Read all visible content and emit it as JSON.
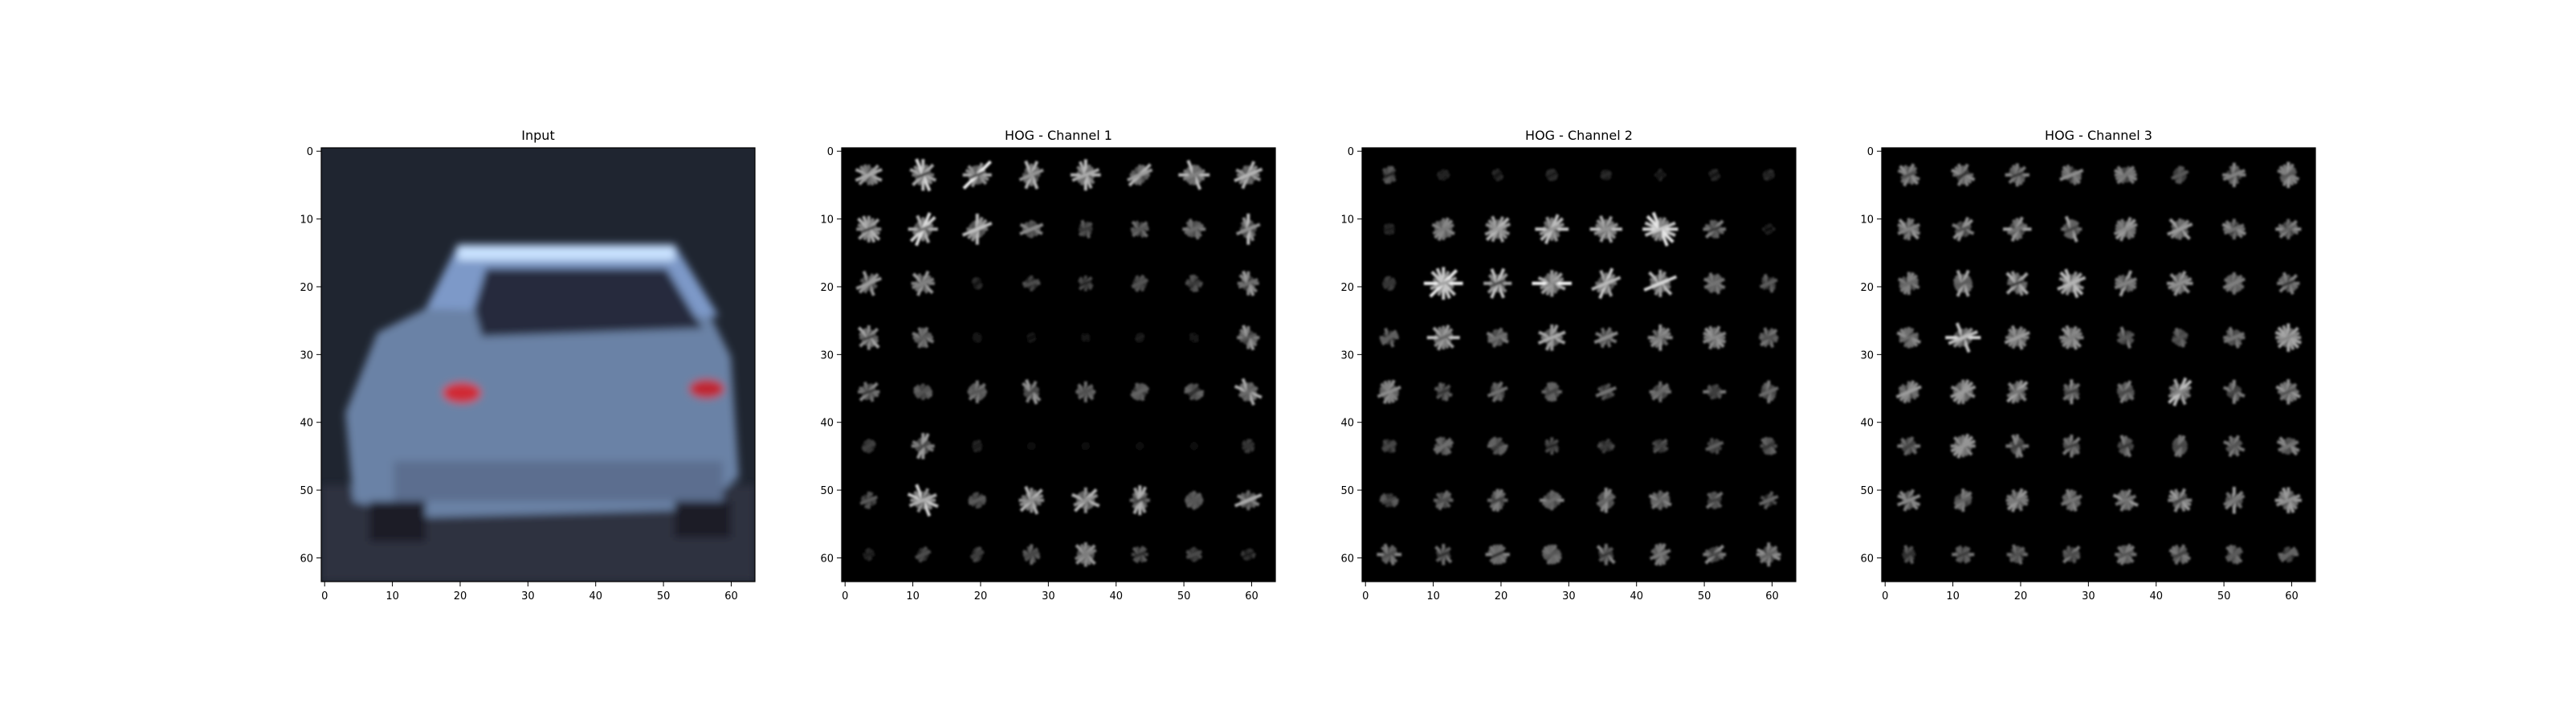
{
  "chart_data": [
    {
      "type": "heatmap",
      "title": "Input",
      "image": "rgb-car-rear",
      "xlim": [
        -0.5,
        63.5
      ],
      "ylim": [
        63.5,
        -0.5
      ],
      "xticks": [
        0,
        10,
        20,
        30,
        40,
        50,
        60
      ],
      "yticks": [
        0,
        10,
        20,
        30,
        40,
        50,
        60
      ]
    },
    {
      "type": "heatmap",
      "title": "HOG - Channel 1",
      "colormap": "gray",
      "grid_cells": [
        8,
        8
      ],
      "xlim": [
        -0.5,
        63.5
      ],
      "ylim": [
        63.5,
        -0.5
      ],
      "xticks": [
        0,
        10,
        20,
        30,
        40,
        50,
        60
      ],
      "yticks": [
        0,
        10,
        20,
        30,
        40,
        50,
        60
      ],
      "cell_intensity": [
        [
          0.6,
          0.7,
          0.8,
          0.6,
          0.6,
          0.6,
          0.6,
          0.6
        ],
        [
          0.6,
          0.7,
          0.6,
          0.45,
          0.35,
          0.35,
          0.45,
          0.6
        ],
        [
          0.5,
          0.5,
          0.15,
          0.3,
          0.3,
          0.3,
          0.3,
          0.55
        ],
        [
          0.6,
          0.4,
          0.1,
          0.1,
          0.1,
          0.1,
          0.1,
          0.5
        ],
        [
          0.45,
          0.4,
          0.6,
          0.5,
          0.35,
          0.35,
          0.35,
          0.6
        ],
        [
          0.2,
          0.6,
          0.15,
          0.05,
          0.05,
          0.05,
          0.05,
          0.2
        ],
        [
          0.3,
          0.7,
          0.3,
          0.6,
          0.65,
          0.6,
          0.3,
          0.55
        ],
        [
          0.15,
          0.25,
          0.25,
          0.35,
          0.5,
          0.3,
          0.25,
          0.2
        ]
      ]
    },
    {
      "type": "heatmap",
      "title": "HOG - Channel 2",
      "colormap": "gray",
      "grid_cells": [
        8,
        8
      ],
      "xlim": [
        -0.5,
        63.5
      ],
      "ylim": [
        63.5,
        -0.5
      ],
      "xticks": [
        0,
        10,
        20,
        30,
        40,
        50,
        60
      ],
      "yticks": [
        0,
        10,
        20,
        30,
        40,
        50,
        60
      ],
      "cell_intensity": [
        [
          0.3,
          0.15,
          0.15,
          0.15,
          0.15,
          0.15,
          0.15,
          0.15
        ],
        [
          0.15,
          0.45,
          0.6,
          0.7,
          0.7,
          0.75,
          0.5,
          0.15
        ],
        [
          0.2,
          0.8,
          0.65,
          0.8,
          0.65,
          0.8,
          0.5,
          0.35
        ],
        [
          0.35,
          0.7,
          0.45,
          0.55,
          0.45,
          0.5,
          0.55,
          0.4
        ],
        [
          0.45,
          0.35,
          0.4,
          0.45,
          0.4,
          0.4,
          0.4,
          0.4
        ],
        [
          0.3,
          0.35,
          0.35,
          0.3,
          0.3,
          0.3,
          0.35,
          0.35
        ],
        [
          0.35,
          0.35,
          0.4,
          0.45,
          0.45,
          0.45,
          0.4,
          0.35
        ],
        [
          0.45,
          0.4,
          0.45,
          0.45,
          0.45,
          0.45,
          0.45,
          0.45
        ]
      ]
    },
    {
      "type": "heatmap",
      "title": "HOG - Channel 3",
      "colormap": "gray",
      "grid_cells": [
        8,
        8
      ],
      "xlim": [
        -0.5,
        63.5
      ],
      "ylim": [
        63.5,
        -0.5
      ],
      "xticks": [
        0,
        10,
        20,
        30,
        40,
        50,
        60
      ],
      "yticks": [
        0,
        10,
        20,
        30,
        40,
        50,
        60
      ],
      "cell_intensity": [
        [
          0.45,
          0.45,
          0.45,
          0.45,
          0.45,
          0.45,
          0.45,
          0.5
        ],
        [
          0.5,
          0.5,
          0.55,
          0.6,
          0.55,
          0.55,
          0.55,
          0.5
        ],
        [
          0.45,
          0.6,
          0.55,
          0.6,
          0.55,
          0.55,
          0.45,
          0.45
        ],
        [
          0.5,
          0.7,
          0.55,
          0.5,
          0.4,
          0.4,
          0.45,
          0.6
        ],
        [
          0.55,
          0.5,
          0.55,
          0.45,
          0.5,
          0.6,
          0.45,
          0.55
        ],
        [
          0.45,
          0.5,
          0.45,
          0.4,
          0.4,
          0.4,
          0.4,
          0.45
        ],
        [
          0.45,
          0.5,
          0.5,
          0.5,
          0.5,
          0.5,
          0.5,
          0.5
        ],
        [
          0.35,
          0.4,
          0.4,
          0.4,
          0.4,
          0.4,
          0.4,
          0.35
        ]
      ]
    }
  ]
}
